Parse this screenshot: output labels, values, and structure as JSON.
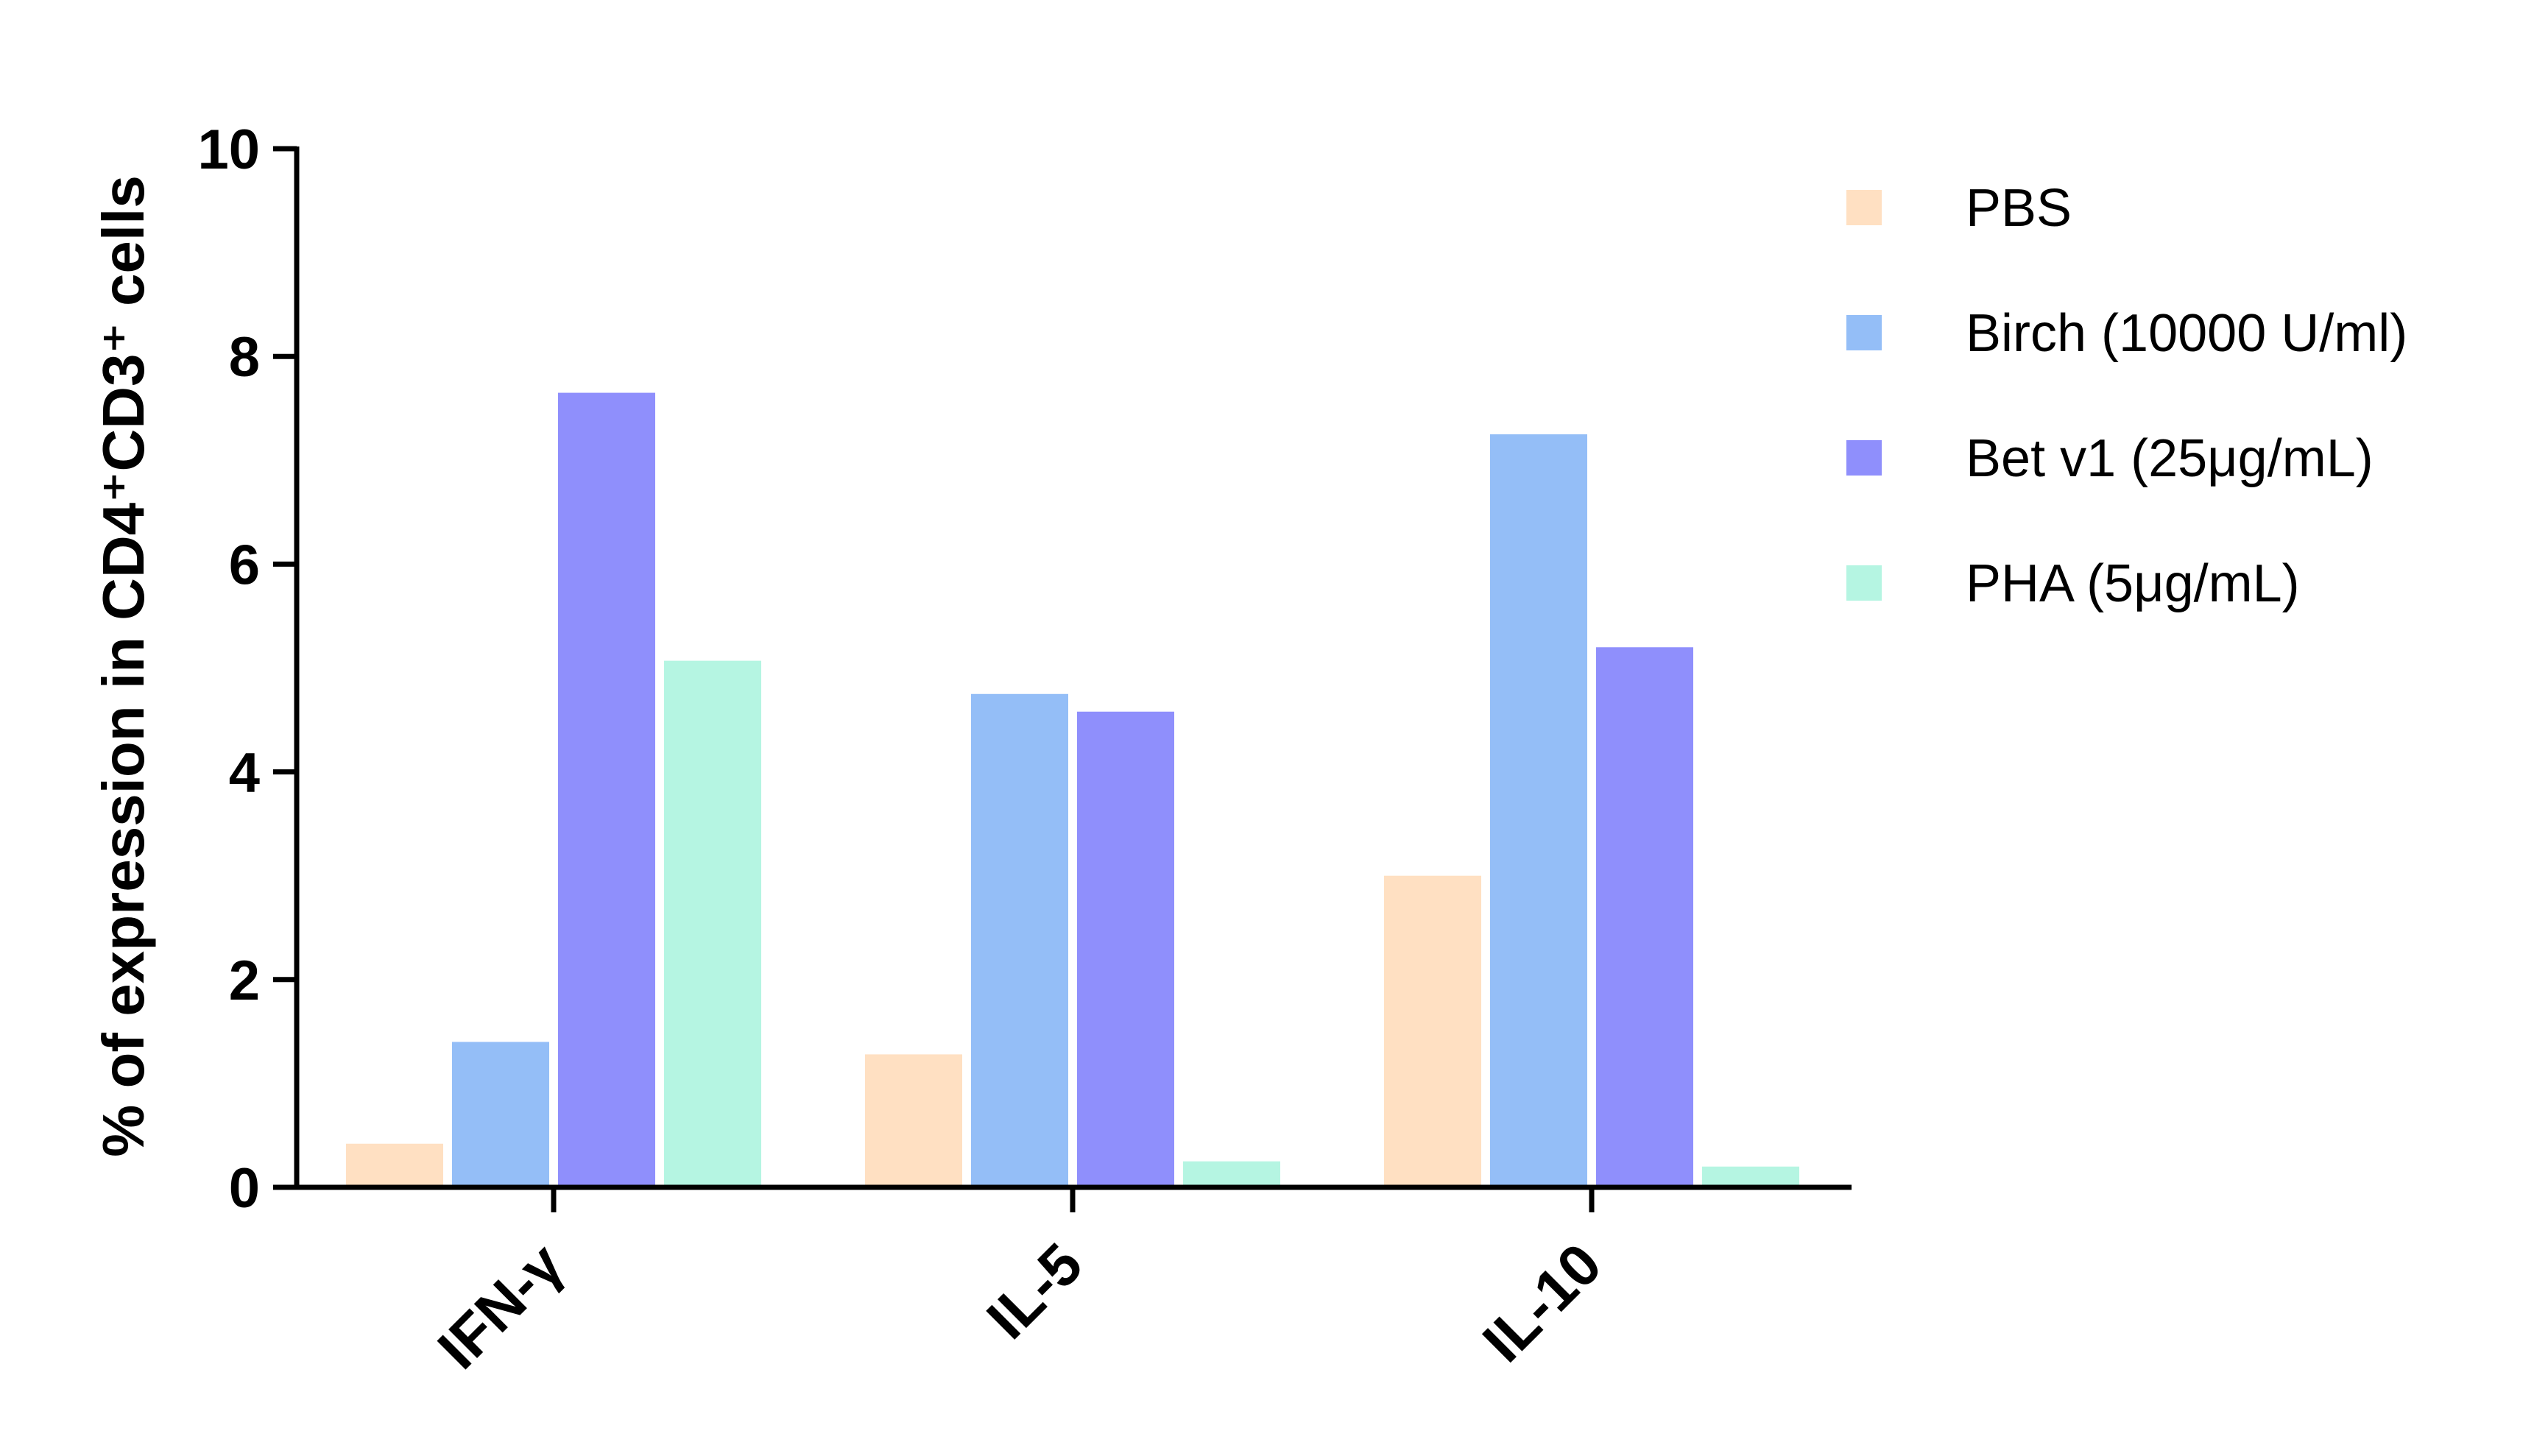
{
  "chart_data": {
    "type": "bar",
    "title": "",
    "xlabel": "",
    "ylabel": "% of expression in CD4⁺CD3⁺ cells",
    "ylim": [
      0,
      10
    ],
    "yticks": [
      "0",
      "2",
      "4",
      "6",
      "8",
      "10"
    ],
    "ytick_values": [
      0,
      2,
      4,
      6,
      8,
      10
    ],
    "categories": [
      "IFN-γ",
      "IL-5",
      "IL-10"
    ],
    "series": [
      {
        "name": "PBS",
        "color": "#FFE0C2",
        "values": [
          0.42,
          1.28,
          3.0
        ]
      },
      {
        "name": "Birch (10000 U/ml)",
        "color": "#94BEF7",
        "values": [
          1.4,
          4.75,
          7.25
        ]
      },
      {
        "name": "Bet v1 (25μg/mL)",
        "color": "#8F8FFC",
        "values": [
          7.65,
          4.58,
          5.2
        ]
      },
      {
        "name": "PHA (5μg/mL)",
        "color": "#B5F5E2",
        "values": [
          5.07,
          0.25,
          0.2
        ]
      }
    ],
    "grid": false,
    "legend_position": "right"
  }
}
